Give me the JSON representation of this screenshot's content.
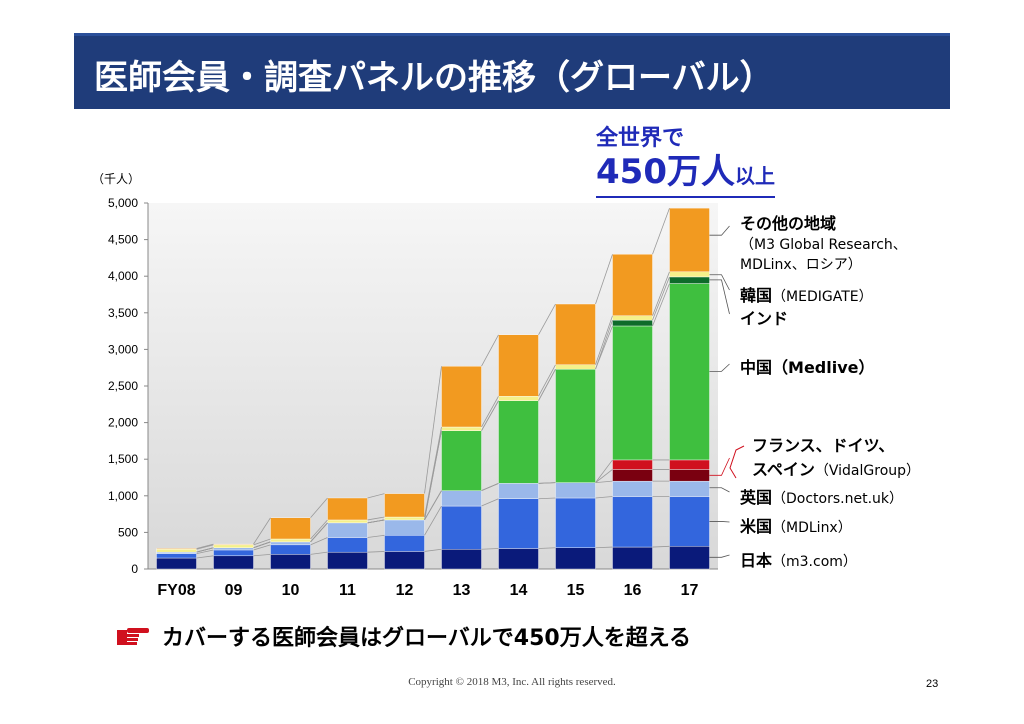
{
  "header": {
    "title": "医師会員・調査パネルの推移（グローバル）"
  },
  "highlight": {
    "line1": "全世界で",
    "line2_main": "450万人",
    "line2_sub": "以上"
  },
  "unit_label": "（千人）",
  "legend": [
    {
      "label": "その他の地域",
      "note": "（M3 Global Research、",
      "note2": "MDLinx、ロシア）",
      "color": "#f29a20"
    },
    {
      "label": "韓国",
      "note": "（MEDIGATE）",
      "color": "#f5f08a"
    },
    {
      "label": "インド",
      "note": "",
      "color": "#0e6b2a"
    },
    {
      "label": "中国",
      "note": "（Medlive）",
      "color": "#3fbf3f"
    },
    {
      "label": "フランス、ドイツ、",
      "note": "",
      "color": "#d0101e"
    },
    {
      "label": "スペイン",
      "note": "（VidalGroup）",
      "color": "#7a0010"
    },
    {
      "label": "英国",
      "note": "（Doctors.net.uk）",
      "color": "#9ab8ea"
    },
    {
      "label": "米国",
      "note": "（MDLinx）",
      "color": "#3366dd"
    },
    {
      "label": "日本",
      "note": "（m3.com）",
      "color": "#0a1a7a"
    }
  ],
  "bottom_message": "カバーする医師会員はグローバルで450万人を超える",
  "footer": {
    "copyright": "Copyright © 2018  M3, Inc.  All rights reserved.",
    "page": "23"
  },
  "chart_data": {
    "type": "bar",
    "stacked": true,
    "categories": [
      "FY08",
      "09",
      "10",
      "11",
      "12",
      "13",
      "14",
      "15",
      "16",
      "17"
    ],
    "ylim": [
      0,
      5000
    ],
    "yticks": [
      0,
      500,
      1000,
      1500,
      2000,
      2500,
      3000,
      3500,
      4000,
      4500,
      5000
    ],
    "ytick_labels": [
      "0",
      "500",
      "1,000",
      "1,500",
      "2,000",
      "2,500",
      "3,000",
      "3,500",
      "4,000",
      "4,500",
      "5,000"
    ],
    "series": [
      {
        "name": "日本",
        "color": "#0a1a7a",
        "values": [
          150,
          180,
          200,
          230,
          240,
          270,
          280,
          290,
          300,
          310
        ]
      },
      {
        "name": "米国",
        "color": "#3366dd",
        "values": [
          60,
          80,
          130,
          200,
          220,
          590,
          680,
          680,
          690,
          680
        ]
      },
      {
        "name": "英国",
        "color": "#9ab8ea",
        "values": [
          20,
          30,
          40,
          200,
          210,
          210,
          210,
          210,
          210,
          210
        ]
      },
      {
        "name": "スペイン",
        "color": "#7a0010",
        "values": [
          0,
          0,
          0,
          0,
          0,
          0,
          0,
          0,
          160,
          160
        ]
      },
      {
        "name": "フランス、ドイツ、",
        "color": "#d0101e",
        "values": [
          0,
          0,
          0,
          0,
          0,
          0,
          0,
          0,
          130,
          130
        ]
      },
      {
        "name": "中国",
        "color": "#3fbf3f",
        "values": [
          0,
          0,
          0,
          0,
          0,
          820,
          1130,
          1550,
          1830,
          2410
        ]
      },
      {
        "name": "インド",
        "color": "#0e6b2a",
        "values": [
          0,
          0,
          0,
          0,
          0,
          0,
          0,
          0,
          80,
          90
        ]
      },
      {
        "name": "韓国",
        "color": "#f5f08a",
        "values": [
          40,
          40,
          40,
          40,
          40,
          50,
          60,
          60,
          60,
          70
        ]
      },
      {
        "name": "その他の地域",
        "color": "#f29a20",
        "values": [
          10,
          10,
          290,
          300,
          320,
          830,
          840,
          830,
          840,
          870
        ]
      }
    ]
  }
}
